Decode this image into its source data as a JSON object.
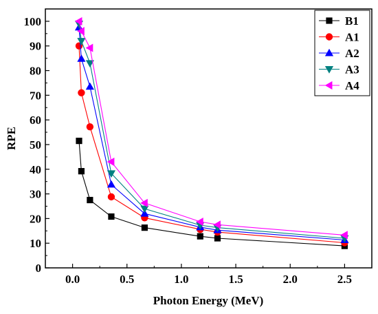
{
  "chart_data": {
    "type": "line",
    "title": "",
    "xlabel": "Photon Energy (MeV)",
    "ylabel": "RPE",
    "xlim": [
      -0.25,
      2.75
    ],
    "ylim": [
      0,
      105
    ],
    "xticks": [
      0.0,
      0.5,
      1.0,
      1.5,
      2.0,
      2.5
    ],
    "xtick_labels": [
      "0.0",
      "0.5",
      "1.0",
      "1.5",
      "2.0",
      "2.5"
    ],
    "yticks": [
      0,
      10,
      20,
      30,
      40,
      50,
      60,
      70,
      80,
      90,
      100
    ],
    "ytick_labels": [
      "0",
      "10",
      "20",
      "30",
      "40",
      "50",
      "60",
      "70",
      "80",
      "90",
      "100"
    ],
    "grid": false,
    "legend_position": "top-right",
    "series": [
      {
        "name": "B1",
        "color": "#000000",
        "marker": "square",
        "x": [
          0.0595,
          0.081,
          0.1597,
          0.356,
          0.662,
          1.173,
          1.332,
          2.5
        ],
        "y": [
          51.5,
          39.2,
          27.5,
          20.8,
          16.3,
          12.8,
          12.0,
          8.9
        ]
      },
      {
        "name": "A1",
        "color": "#ff0000",
        "marker": "circle",
        "x": [
          0.0595,
          0.081,
          0.1597,
          0.356,
          0.662,
          1.173,
          1.332,
          2.5
        ],
        "y": [
          90.0,
          71.0,
          57.2,
          28.8,
          20.3,
          15.6,
          14.5,
          10.2
        ]
      },
      {
        "name": "A2",
        "color": "#0000ff",
        "marker": "triangle-up",
        "x": [
          0.0595,
          0.081,
          0.1597,
          0.356,
          0.662,
          1.173,
          1.332,
          2.5
        ],
        "y": [
          97.5,
          84.8,
          73.5,
          33.8,
          22.0,
          16.5,
          15.3,
          11.3
        ]
      },
      {
        "name": "A3",
        "color": "#008080",
        "marker": "triangle-down",
        "x": [
          0.0595,
          0.081,
          0.1597,
          0.356,
          0.662,
          1.173,
          1.332,
          2.5
        ],
        "y": [
          99.0,
          92.0,
          83.0,
          38.3,
          24.0,
          17.3,
          16.3,
          12.0
        ]
      },
      {
        "name": "A4",
        "color": "#ff00ff",
        "marker": "triangle-left",
        "x": [
          0.0595,
          0.081,
          0.1597,
          0.356,
          0.662,
          1.173,
          1.332,
          2.5
        ],
        "y": [
          100.0,
          96.0,
          89.2,
          43.0,
          26.3,
          18.7,
          17.5,
          13.3
        ]
      }
    ]
  }
}
